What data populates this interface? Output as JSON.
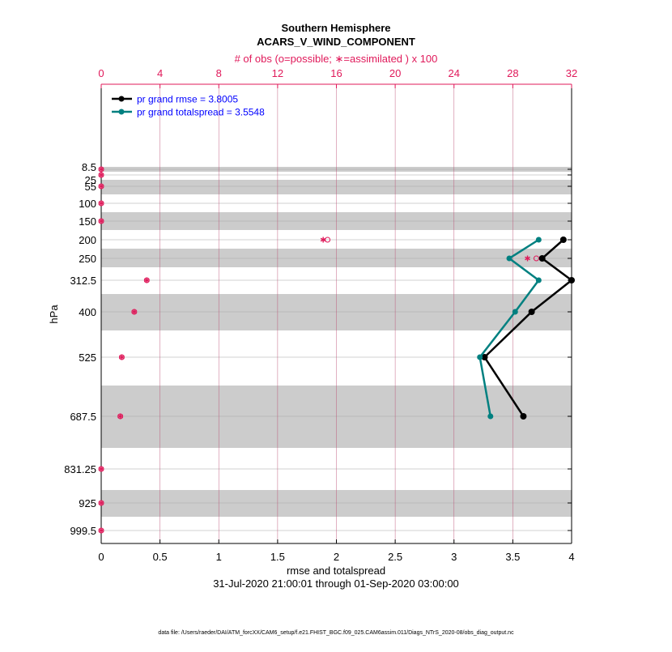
{
  "chart_data": {
    "type": "line",
    "title": "Southern Hemisphere",
    "subtitle": "ACARS_V_WIND_COMPONENT",
    "top_axis_label": "# of obs (o=possible; ∗=assimilated ) x 100",
    "xlabel": "rmse and totalspread",
    "ylabel": "hPa",
    "date_range": "31-Jul-2020 21:00:01 through 01-Sep-2020 03:00:00",
    "footer": "data file: /Users/raeder/DAI/ATM_forcXX/CAM6_setup/f.e21.FHIST_BGC.f09_025.CAM6assim.011/Diags_NTrS_2020-08/obs_diag_output.nc",
    "xlim": [
      0,
      4
    ],
    "top_xlim": [
      0,
      32
    ],
    "xticks": [
      "0",
      "0.5",
      "1",
      "1.5",
      "2",
      "2.5",
      "3",
      "3.5",
      "4"
    ],
    "top_xticks": [
      "0",
      "4",
      "8",
      "12",
      "16",
      "20",
      "24",
      "28",
      "32"
    ],
    "levels": [
      "8.5",
      "25",
      "55",
      "100",
      "150",
      "200",
      "250",
      "312.5",
      "400",
      "525",
      "687.5",
      "831.25",
      "925",
      "999.5"
    ],
    "shaded_levels": [
      "8.5",
      "55",
      "150",
      "250",
      "400",
      "687.5",
      "925"
    ],
    "grid": true,
    "legend_placement": "top-left",
    "colors": {
      "rmse": "#000000",
      "spread": "#008080",
      "obs": "#e0195a",
      "band": "#cccccc",
      "legend_text": "#0000ff"
    },
    "series": [
      {
        "name": "pr grand rmse = 3.8005",
        "levels": [
          "200",
          "250",
          "312.5",
          "400",
          "525",
          "687.5"
        ],
        "values": [
          3.93,
          3.75,
          4.0,
          3.66,
          3.26,
          3.59
        ]
      },
      {
        "name": "pr grand totalspread = 3.5548",
        "levels": [
          "200",
          "250",
          "312.5",
          "400",
          "525",
          "687.5"
        ],
        "values": [
          3.72,
          3.47,
          3.72,
          3.52,
          3.22,
          3.31
        ]
      }
    ],
    "obs_possible": [
      0,
      0,
      0,
      0,
      0,
      15.4,
      29.6,
      3.1,
      2.25,
      1.4,
      1.3,
      0,
      0,
      0
    ],
    "obs_assimilated": [
      0,
      0,
      0,
      0,
      0,
      15.1,
      29.0,
      3.1,
      2.25,
      1.4,
      1.3,
      0,
      0,
      0
    ]
  }
}
